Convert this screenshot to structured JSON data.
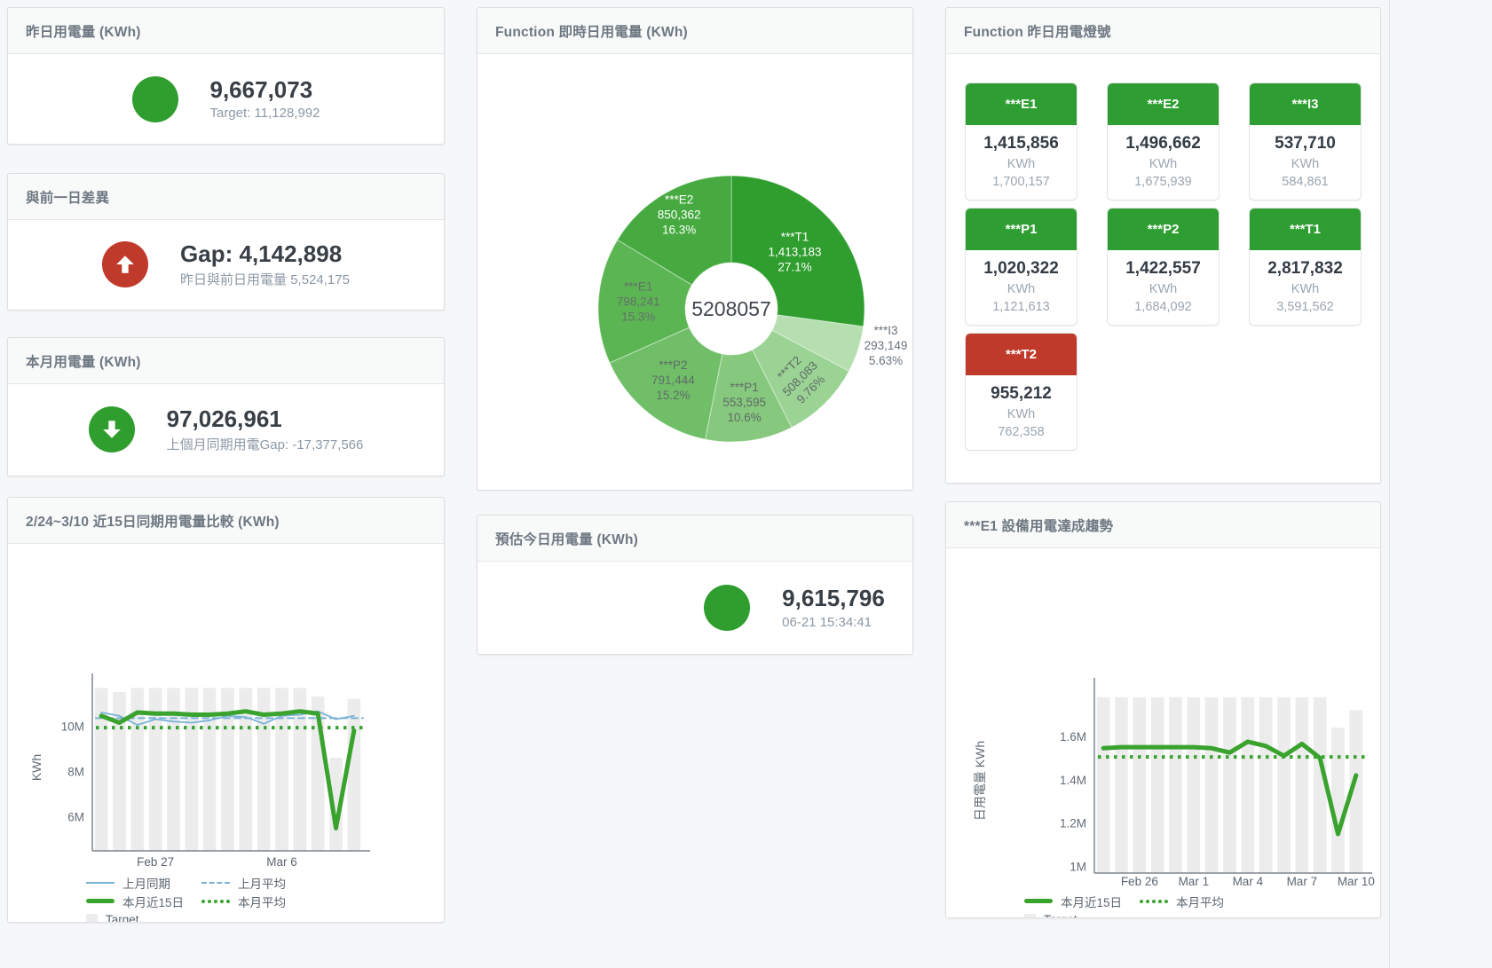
{
  "colors": {
    "green": "#2f9e2f",
    "red": "#c03a2b",
    "blue_line": "#7ab3d6",
    "green_line": "#39a32e",
    "target_bar": "#ececec"
  },
  "cards": {
    "yesterday": {
      "title": "昨日用電量 (KWh)",
      "value": "9,667,073",
      "subtitle": "Target: 11,128,992",
      "indicator": "green-circle"
    },
    "diff_prev_day": {
      "title": "與前一日差異",
      "value": "Gap: 4,142,898",
      "subtitle": "昨日與前日用電量 5,524,175",
      "indicator": "red-circle-up-arrow"
    },
    "month": {
      "title": "本月用電量 (KWh)",
      "value": "97,026,961",
      "subtitle": "上個月同期用電Gap: -17,377,566",
      "indicator": "green-circle-down-arrow"
    },
    "estimate": {
      "title": "預估今日用電量 (KWh)",
      "value": "9,615,796",
      "subtitle": "06-21 15:34:41",
      "indicator": "green-circle"
    }
  },
  "lights_panel": {
    "title": "Function 昨日用電燈號",
    "tiles": [
      {
        "label": "***E1",
        "value": "1,415,856",
        "unit": "KWh",
        "target": "1,700,157",
        "status": "green"
      },
      {
        "label": "***E2",
        "value": "1,496,662",
        "unit": "KWh",
        "target": "1,675,939",
        "status": "green"
      },
      {
        "label": "***I3",
        "value": "537,710",
        "unit": "KWh",
        "target": "584,861",
        "status": "green"
      },
      {
        "label": "***P1",
        "value": "1,020,322",
        "unit": "KWh",
        "target": "1,121,613",
        "status": "green"
      },
      {
        "label": "***P2",
        "value": "1,422,557",
        "unit": "KWh",
        "target": "1,684,092",
        "status": "green"
      },
      {
        "label": "***T1",
        "value": "2,817,832",
        "unit": "KWh",
        "target": "3,591,562",
        "status": "green"
      },
      {
        "label": "***T2",
        "value": "955,212",
        "unit": "KWh",
        "target": "762,358",
        "status": "red"
      }
    ]
  },
  "chart_data": [
    {
      "type": "pie",
      "title": "Function 即時日用電量 (KWh)",
      "center_total": "5208057",
      "slices": [
        {
          "name": "***T1",
          "value": 1413183,
          "value_label": "1,413,183",
          "pct": "27.1%",
          "color": "#2f9e2e",
          "label_color": "#ffffff",
          "label_r": 95
        },
        {
          "name": "***I3",
          "value": 293149,
          "value_label": "293,149",
          "pct": "5.63%",
          "color": "#b6dfb0",
          "label_color": "#6a737b",
          "outside": true,
          "label_xy": [
            460,
            330
          ]
        },
        {
          "name": "***T2",
          "value": 508083,
          "value_label": "508,083",
          "pct": "9.76%",
          "color": "#9bd394",
          "label_color": "#5f6b66",
          "rotate": -45,
          "label_r": 112
        },
        {
          "name": "***P1",
          "value": 553595,
          "value_label": "553,595",
          "pct": "10.6%",
          "color": "#86c87e",
          "label_color": "#5f6b66",
          "label_r": 108
        },
        {
          "name": "***P2",
          "value": 791444,
          "value_label": "791,444",
          "pct": "15.2%",
          "color": "#70bf68",
          "label_color": "#5f6b66",
          "label_r": 105
        },
        {
          "name": "***E1",
          "value": 798241,
          "value_label": "798,241",
          "pct": "15.3%",
          "color": "#5cb553",
          "label_color": "#62706a",
          "label_r": 105
        },
        {
          "name": "***E2",
          "value": 850362,
          "value_label": "850,362",
          "pct": "16.3%",
          "color": "#46aa40",
          "label_color": "#ffffff",
          "label_r": 120
        }
      ]
    },
    {
      "type": "line",
      "title": "2/24~3/10 近15日同期用電量比較 (KWh)",
      "ylabel": "KWh",
      "ylim": [
        4.5,
        11.85
      ],
      "unit_scale": "values in millions of KWh",
      "yticks": [
        {
          "value": 10,
          "label": "10M"
        },
        {
          "value": 8,
          "label": "8M"
        },
        {
          "value": 6,
          "label": "6M"
        }
      ],
      "x_dates": [
        "2/24",
        "2/25",
        "2/26",
        "2/27",
        "2/28",
        "3/1",
        "3/2",
        "3/3",
        "3/4",
        "3/5",
        "3/6",
        "3/7",
        "3/8",
        "3/9",
        "3/10"
      ],
      "xticks": [
        {
          "index": 3,
          "label": "Feb 27"
        },
        {
          "index": 10,
          "label": "Mar 6"
        }
      ],
      "bars": {
        "name": "Target",
        "color": "#ececec",
        "values": [
          11.68,
          11.5,
          11.68,
          11.68,
          11.68,
          11.68,
          11.68,
          11.68,
          11.68,
          11.68,
          11.68,
          11.68,
          11.3,
          8.6,
          11.2
        ]
      },
      "series": [
        {
          "name": "上月同期",
          "style": "solid",
          "color": "#7ab3d6",
          "width": 1.8,
          "values": [
            10.6,
            10.45,
            10.05,
            10.3,
            10.2,
            10.15,
            10.25,
            10.45,
            10.4,
            10.1,
            10.45,
            10.5,
            10.65,
            10.3,
            10.45
          ]
        },
        {
          "name": "上月平均",
          "style": "dashed",
          "color": "#7ab3d6",
          "width": 2,
          "avg": 10.35
        },
        {
          "name": "本月近15日",
          "style": "solid",
          "color": "#39a32e",
          "width": 5,
          "values": [
            10.45,
            10.15,
            10.6,
            10.55,
            10.55,
            10.5,
            10.5,
            10.55,
            10.65,
            10.5,
            10.55,
            10.65,
            10.55,
            5.5,
            9.8
          ]
        },
        {
          "name": "本月平均",
          "style": "dotted",
          "color": "#39a32e",
          "width": 4,
          "avg": 9.93
        }
      ],
      "legend": [
        {
          "label": "上月同期",
          "marker": "blue-solid"
        },
        {
          "label": "上月平均",
          "marker": "blue-dashed"
        },
        {
          "label": "本月近15日",
          "marker": "green-thick"
        },
        {
          "label": "本月平均",
          "marker": "green-dotted"
        },
        {
          "label": "Target",
          "marker": "gray-square"
        }
      ]
    },
    {
      "type": "line",
      "title": "***E1 設備用電達成趨勢",
      "ylabel": "日用電量 KWh",
      "ylim": [
        0.97,
        1.82
      ],
      "unit_scale": "values in millions of KWh",
      "yticks": [
        {
          "value": 1.6,
          "label": "1.6M"
        },
        {
          "value": 1.4,
          "label": "1.4M"
        },
        {
          "value": 1.2,
          "label": "1.2M"
        },
        {
          "value": 1.0,
          "label": "1M"
        }
      ],
      "x_dates": [
        "2/24",
        "2/25",
        "2/26",
        "2/27",
        "2/28",
        "3/1",
        "3/2",
        "3/3",
        "3/4",
        "3/5",
        "3/6",
        "3/7",
        "3/8",
        "3/9",
        "3/10"
      ],
      "xticks": [
        {
          "index": 2,
          "label": "Feb 26"
        },
        {
          "index": 5,
          "label": "Mar 1"
        },
        {
          "index": 8,
          "label": "Mar 4"
        },
        {
          "index": 11,
          "label": "Mar 7"
        },
        {
          "index": 14,
          "label": "Mar 10"
        }
      ],
      "bars": {
        "name": "Target",
        "color": "#ececec",
        "values": [
          1.78,
          1.78,
          1.78,
          1.78,
          1.78,
          1.78,
          1.78,
          1.78,
          1.78,
          1.78,
          1.78,
          1.78,
          1.78,
          1.64,
          1.72
        ]
      },
      "series": [
        {
          "name": "本月近15日",
          "style": "solid",
          "color": "#39a32e",
          "width": 5,
          "values": [
            1.545,
            1.55,
            1.55,
            1.55,
            1.55,
            1.55,
            1.545,
            1.525,
            1.575,
            1.555,
            1.51,
            1.565,
            1.5,
            1.15,
            1.42
          ]
        },
        {
          "name": "本月平均",
          "style": "dotted",
          "color": "#39a32e",
          "width": 4,
          "avg": 1.505
        }
      ],
      "legend": [
        {
          "label": "本月近15日",
          "marker": "green-thick"
        },
        {
          "label": "本月平均",
          "marker": "green-dotted"
        },
        {
          "label": "Target",
          "marker": "gray-square"
        }
      ]
    }
  ]
}
